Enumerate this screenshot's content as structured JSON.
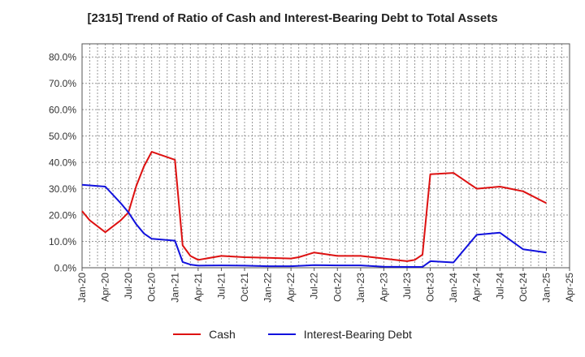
{
  "chart_data": {
    "type": "line",
    "title": "[2315]  Trend of Ratio of Cash and Interest-Bearing Debt to Total Assets",
    "xlabel": "",
    "ylabel": "",
    "ylim": [
      0,
      85
    ],
    "yticks": [
      0,
      10,
      20,
      30,
      40,
      50,
      60,
      70,
      80
    ],
    "ytick_labels": [
      "0.0%",
      "10.0%",
      "20.0%",
      "30.0%",
      "40.0%",
      "50.0%",
      "60.0%",
      "70.0%",
      "80.0%"
    ],
    "xticks": [
      "Jan-20",
      "Apr-20",
      "Jul-20",
      "Oct-20",
      "Jan-21",
      "Apr-21",
      "Jul-21",
      "Oct-21",
      "Jan-22",
      "Apr-22",
      "Jul-22",
      "Oct-22",
      "Jan-23",
      "Apr-23",
      "Jul-23",
      "Oct-23",
      "Jan-24",
      "Apr-24",
      "Jul-24",
      "Oct-24",
      "Jan-25",
      "Apr-25"
    ],
    "grid": true,
    "legend_position": "bottom",
    "series": [
      {
        "name": "Cash",
        "color": "#dd1111",
        "points": [
          [
            "Jan-20",
            21.5
          ],
          [
            "Feb-20",
            18.0
          ],
          [
            "Apr-20",
            13.5
          ],
          [
            "Jun-20",
            18.0
          ],
          [
            "Jul-20",
            21.0
          ],
          [
            "Aug-20",
            31.0
          ],
          [
            "Sep-20",
            38.5
          ],
          [
            "Oct-20",
            44.0
          ],
          [
            "Jan-21",
            41.0
          ],
          [
            "Feb-21",
            8.5
          ],
          [
            "Mar-21",
            4.5
          ],
          [
            "Apr-21",
            3.0
          ],
          [
            "Jul-21",
            4.5
          ],
          [
            "Oct-21",
            4.0
          ],
          [
            "Jan-22",
            3.8
          ],
          [
            "Apr-22",
            3.5
          ],
          [
            "May-22",
            4.0
          ],
          [
            "Jul-22",
            5.8
          ],
          [
            "Oct-22",
            4.5
          ],
          [
            "Jan-23",
            4.5
          ],
          [
            "Apr-23",
            3.5
          ],
          [
            "Jun-23",
            2.8
          ],
          [
            "Jul-23",
            2.5
          ],
          [
            "Aug-23",
            3.0
          ],
          [
            "Sep-23",
            5.0
          ],
          [
            "Oct-23",
            35.5
          ],
          [
            "Jan-24",
            36.0
          ],
          [
            "Apr-24",
            30.0
          ],
          [
            "Jul-24",
            30.8
          ],
          [
            "Oct-24",
            29.0
          ],
          [
            "Jan-25",
            24.5
          ]
        ]
      },
      {
        "name": "Interest-Bearing Debt",
        "color": "#1111dd",
        "points": [
          [
            "Jan-20",
            31.5
          ],
          [
            "Apr-20",
            30.8
          ],
          [
            "Jun-20",
            24.5
          ],
          [
            "Jul-20",
            21.0
          ],
          [
            "Aug-20",
            16.5
          ],
          [
            "Sep-20",
            13.0
          ],
          [
            "Oct-20",
            11.0
          ],
          [
            "Jan-21",
            10.3
          ],
          [
            "Feb-21",
            2.2
          ],
          [
            "Mar-21",
            1.2
          ],
          [
            "Apr-21",
            0.8
          ],
          [
            "Jul-21",
            0.9
          ],
          [
            "Oct-21",
            0.8
          ],
          [
            "Jan-22",
            0.6
          ],
          [
            "Apr-22",
            0.6
          ],
          [
            "Jul-22",
            1.0
          ],
          [
            "Oct-22",
            0.9
          ],
          [
            "Jan-23",
            0.9
          ],
          [
            "Apr-23",
            0.4
          ],
          [
            "Jul-23",
            0.3
          ],
          [
            "Sep-23",
            0.3
          ],
          [
            "Oct-23",
            2.5
          ],
          [
            "Jan-24",
            2.0
          ],
          [
            "Apr-24",
            12.5
          ],
          [
            "Jul-24",
            13.3
          ],
          [
            "Oct-24",
            7.0
          ],
          [
            "Jan-25",
            5.8
          ]
        ]
      }
    ]
  }
}
